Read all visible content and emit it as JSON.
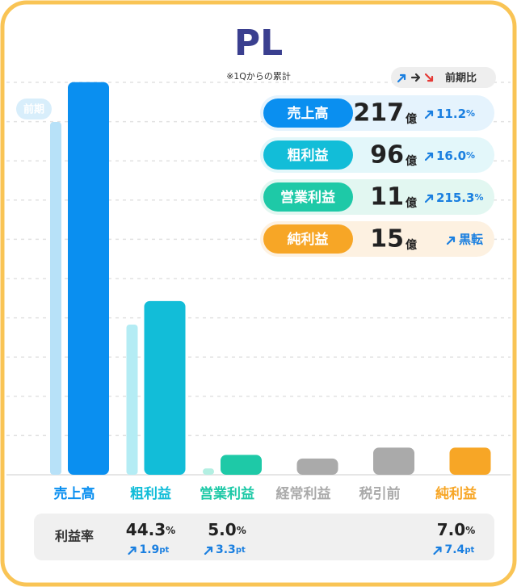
{
  "chart_data": {
    "type": "bar",
    "title": "PL",
    "subtitle": "※1Qからの累計",
    "categories": [
      "売上高",
      "粗利益",
      "営業利益",
      "経常利益",
      "税引前",
      "純利益"
    ],
    "series": [
      {
        "name": "前期",
        "colors": [
          "#b7e1f8",
          "#b4ecf4",
          "#b3efe2",
          "#dddddd",
          "#dddddd",
          "#fde3b8"
        ],
        "values": [
          195,
          83,
          3.5,
          null,
          null,
          null
        ]
      },
      {
        "colors": [
          "#0a8ff0",
          "#12bdd8",
          "#1ec9a7",
          "#aaaaaa",
          "#aaaaaa",
          "#f7a626"
        ],
        "values": [
          217,
          96,
          11,
          9,
          15,
          15
        ]
      }
    ],
    "ylim": [
      0,
      220
    ],
    "grid": true,
    "summary": {
      "label": "前期比",
      "unit": "億",
      "change_unit": "%",
      "rows": [
        {
          "name": "売上高",
          "value": 217,
          "change": "11.2",
          "color": "#0a8ff0",
          "bg": "#e5f3fd"
        },
        {
          "name": "粗利益",
          "value": 96,
          "change": "16.0",
          "color": "#12bdd8",
          "bg": "#e3f7fa"
        },
        {
          "name": "営業利益",
          "value": 11,
          "change": "215.3",
          "color": "#1ec9a7",
          "bg": "#e2f7f1"
        },
        {
          "name": "純利益",
          "value": 15,
          "change_note": "黒転",
          "color": "#f7a626",
          "bg": "#fdf1e1"
        }
      ]
    },
    "margin": {
      "label": "利益率",
      "unit": "%",
      "change_unit": "pt",
      "values": [
        null,
        "44.3",
        "5.0",
        null,
        null,
        "7.0"
      ],
      "changes": [
        null,
        "1.9",
        "3.3",
        null,
        null,
        "7.4"
      ]
    }
  }
}
